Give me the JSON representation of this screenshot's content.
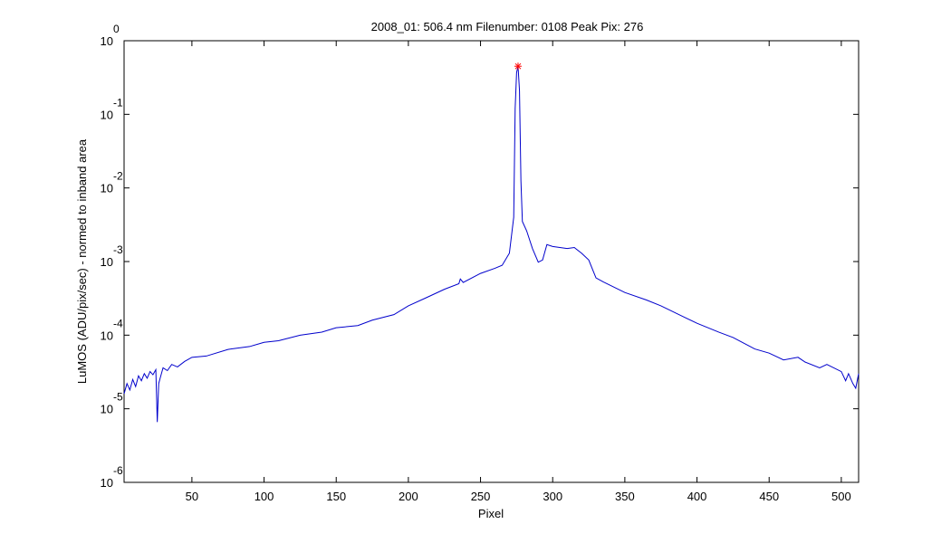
{
  "chart_data": {
    "type": "line",
    "title": "2008_01: 506.4 nm  Filenumber: 0108 Peak Pix: 276",
    "xlabel": "Pixel",
    "ylabel": "LuMOS (ADU/pix/sec) - normed to inband area",
    "log_y": true,
    "color": "#0000cc",
    "x": [
      3,
      5,
      7,
      9,
      11,
      13,
      15,
      17,
      19,
      21,
      23,
      25,
      26,
      27,
      28,
      30,
      33,
      36,
      40,
      45,
      50,
      60,
      75,
      90,
      100,
      110,
      125,
      140,
      150,
      165,
      175,
      190,
      200,
      212,
      225,
      235,
      236,
      238,
      250,
      260,
      265,
      270,
      273,
      274,
      275,
      276,
      277,
      278,
      279,
      282,
      286,
      290,
      293,
      296,
      300,
      310,
      315,
      320,
      325,
      328,
      330,
      335,
      350,
      365,
      375,
      390,
      400,
      415,
      425,
      440,
      450,
      460,
      470,
      475,
      485,
      490,
      500,
      503,
      505,
      508,
      510,
      512
    ],
    "values": [
      1.6e-05,
      2.2e-05,
      1.8e-05,
      2.5e-05,
      2e-05,
      2.8e-05,
      2.4e-05,
      3e-05,
      2.6e-05,
      3.2e-05,
      2.9e-05,
      3.4e-05,
      6.6e-06,
      2.2e-05,
      2.6e-05,
      3.6e-05,
      3.3e-05,
      4e-05,
      3.7e-05,
      4.4e-05,
      5e-05,
      5.2e-05,
      6.4e-05,
      7e-05,
      8e-05,
      8.4e-05,
      0.0001,
      0.00011,
      0.000126,
      0.000135,
      0.00016,
      0.00019,
      0.00025,
      0.00032,
      0.00042,
      0.0005,
      0.00058,
      0.00052,
      0.00069,
      0.00081,
      0.00089,
      0.0013,
      0.004,
      0.12,
      0.37,
      0.45,
      0.21,
      0.0125,
      0.0035,
      0.0026,
      0.0015,
      0.00098,
      0.00105,
      0.0017,
      0.0016,
      0.0015,
      0.00155,
      0.0013,
      0.00105,
      0.00075,
      0.0006,
      0.00053,
      0.00038,
      0.0003,
      0.00025,
      0.00018,
      0.000145,
      0.00011,
      9.3e-05,
      6.5e-05,
      5.7e-05,
      4.6e-05,
      5e-05,
      4.3e-05,
      3.6e-05,
      4e-05,
      3.2e-05,
      2.4e-05,
      3e-05,
      2.2e-05,
      1.9e-05,
      3e-05
    ],
    "peak": {
      "x": 276,
      "value": 0.45,
      "color": "#ff0000"
    },
    "xlim": [
      3,
      512
    ],
    "xticks": [
      50,
      100,
      150,
      200,
      250,
      300,
      350,
      400,
      450,
      500
    ],
    "ylim": [
      1e-06,
      1
    ],
    "yticks": [
      {
        "value": 1e-06,
        "label": "10",
        "exponent": "-6"
      },
      {
        "value": 1e-05,
        "label": "10",
        "exponent": "-5"
      },
      {
        "value": 0.0001,
        "label": "10",
        "exponent": "-4"
      },
      {
        "value": 0.001,
        "label": "10",
        "exponent": "-3"
      },
      {
        "value": 0.01,
        "label": "10",
        "exponent": "-2"
      },
      {
        "value": 0.1,
        "label": "10",
        "exponent": "-1"
      },
      {
        "value": 1,
        "label": "10",
        "exponent": "0"
      }
    ]
  }
}
